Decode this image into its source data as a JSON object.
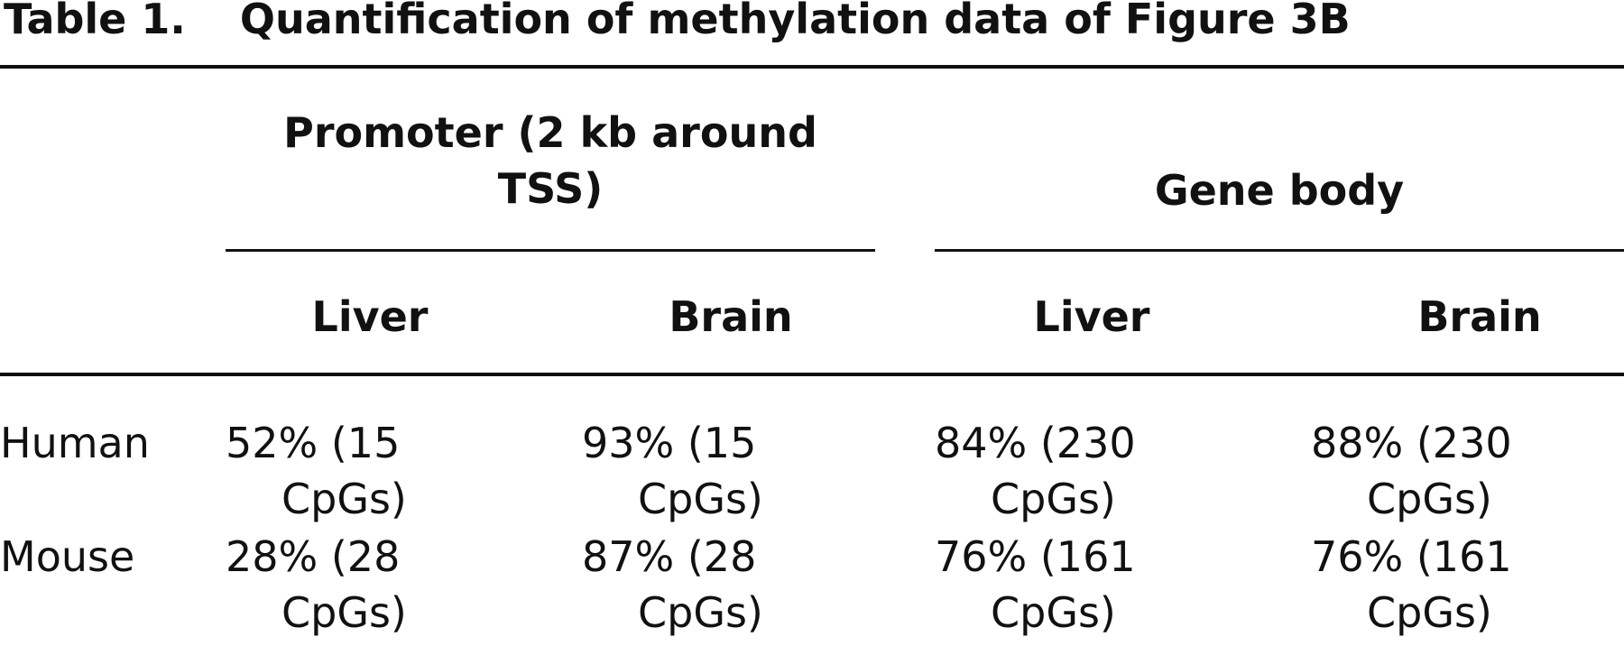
{
  "table": {
    "caption_label": "Table 1.",
    "caption_title": "Quantification of methylation data of Figure 3B",
    "group_headers": [
      {
        "line1": "Promoter (2 kb around",
        "line2": "TSS)"
      },
      {
        "line1": "Gene body",
        "line2": ""
      }
    ],
    "column_headers": [
      "Liver",
      "Brain",
      "Liver",
      "Brain"
    ],
    "rows": [
      {
        "label": "Human",
        "cells": [
          {
            "value": "52% (15",
            "cont": "CpGs)"
          },
          {
            "value": "93% (15",
            "cont": "CpGs)"
          },
          {
            "value": "84% (230",
            "cont": "CpGs)"
          },
          {
            "value": "88% (230",
            "cont": "CpGs)"
          }
        ]
      },
      {
        "label": "Mouse",
        "cells": [
          {
            "value": "28% (28",
            "cont": "CpGs)"
          },
          {
            "value": "87% (28",
            "cont": "CpGs)"
          },
          {
            "value": "76% (161",
            "cont": "CpGs)"
          },
          {
            "value": "76% (161",
            "cont": "CpGs)"
          }
        ]
      }
    ]
  }
}
